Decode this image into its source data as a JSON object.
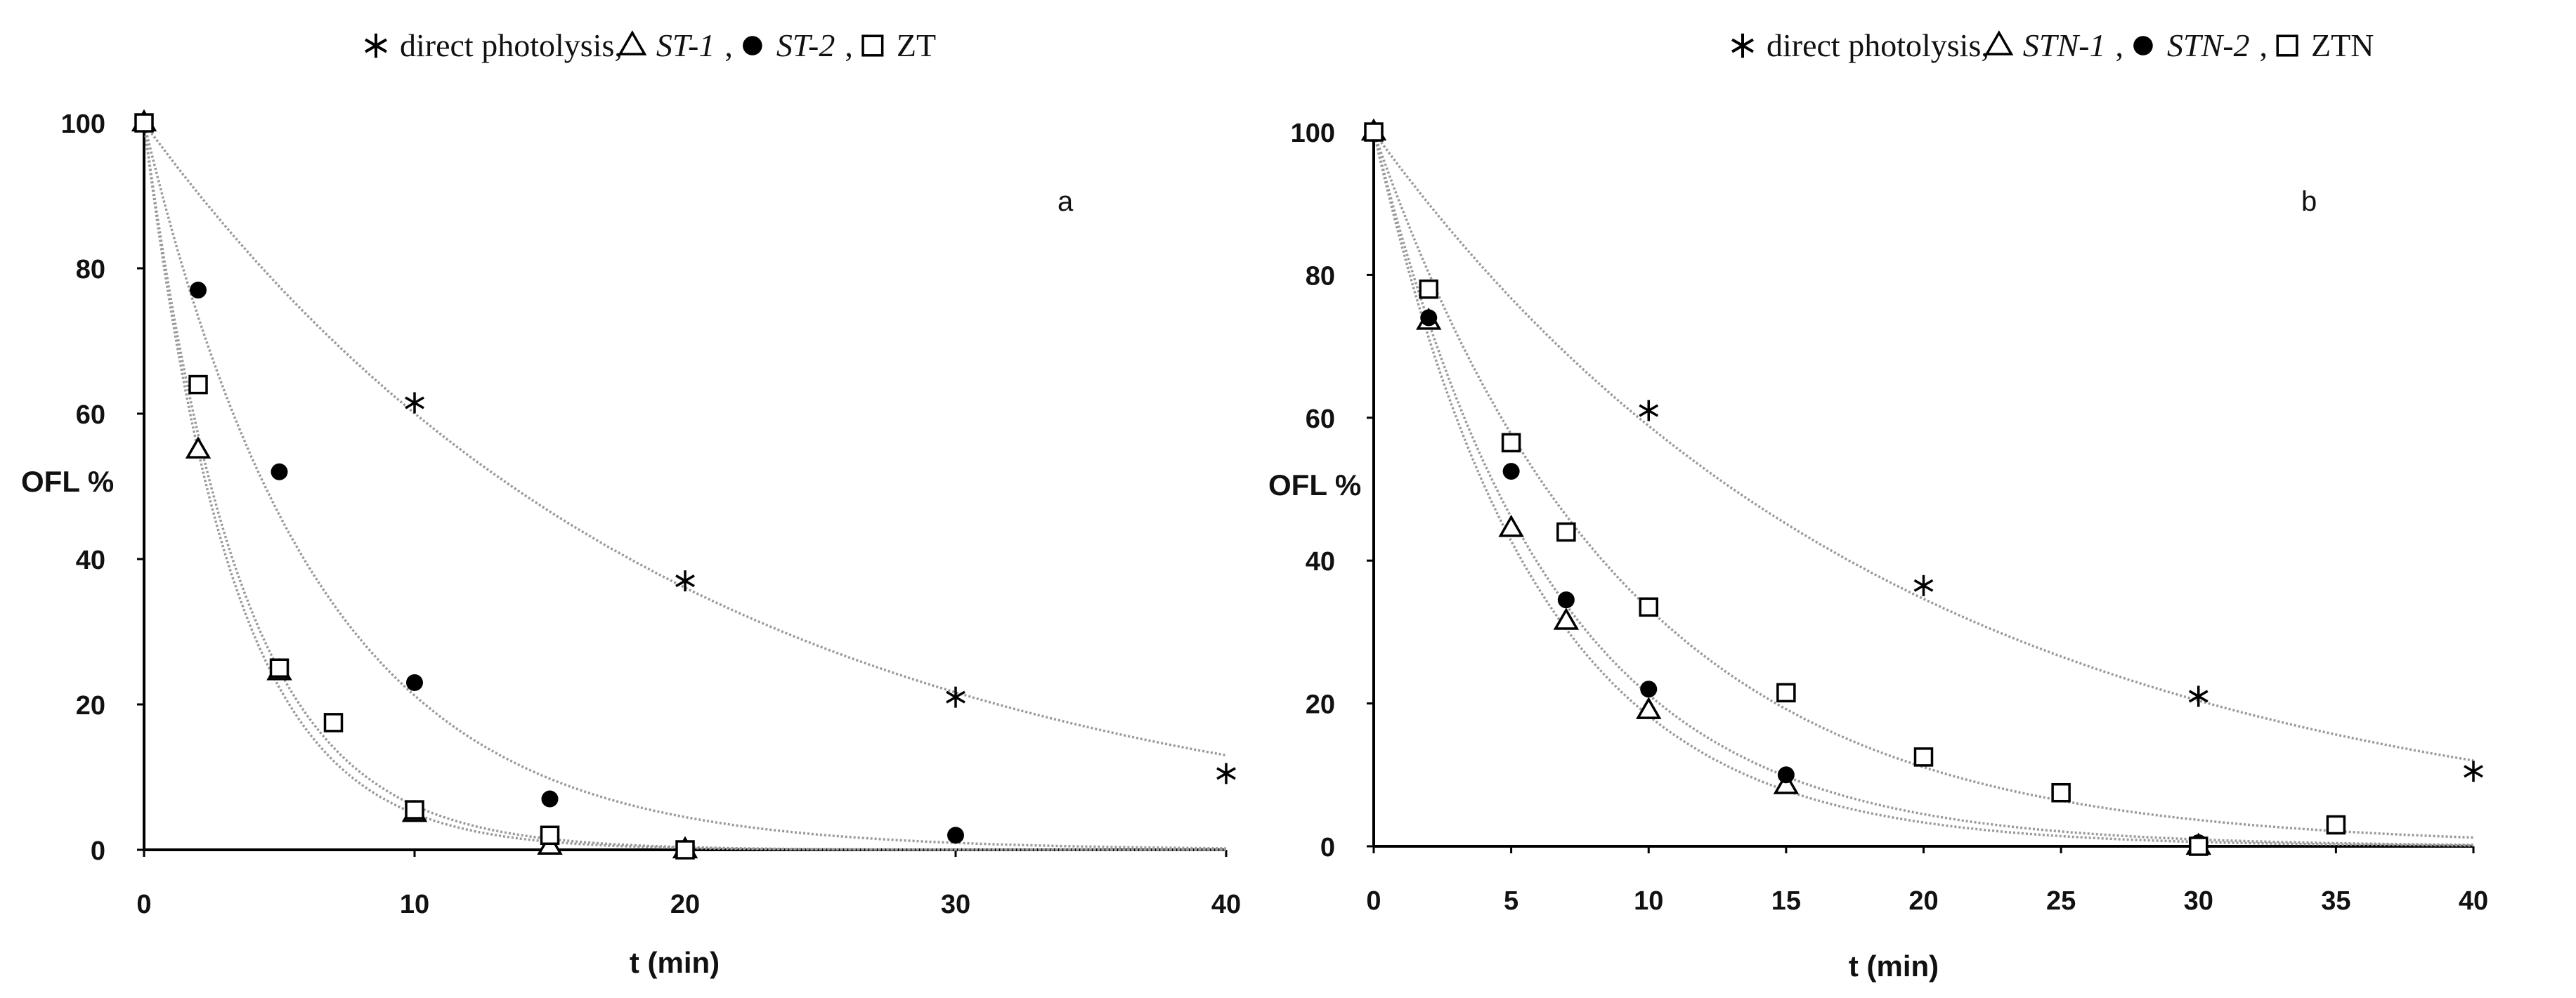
{
  "chart_data": [
    {
      "type": "scatter",
      "panel_label": "a",
      "xlabel": "t (min)",
      "ylabel": "OFL %",
      "xlim": [
        0,
        40
      ],
      "ylim": [
        0,
        100
      ],
      "xticks": [
        0,
        10,
        20,
        30,
        40
      ],
      "yticks": [
        0,
        20,
        40,
        60,
        80,
        100
      ],
      "xtick_labels": [
        "0",
        "10",
        "20",
        "30",
        "40"
      ],
      "ytick_labels": [
        "0",
        "20",
        "40",
        "60",
        "80",
        "100"
      ],
      "grid": false,
      "legend_position": "top",
      "legend": [
        {
          "text": "direct photolysis,",
          "italic": false,
          "marker": "asterisk"
        },
        {
          "text": "ST-1",
          "italic": true,
          "marker": "triangle"
        },
        {
          "text": ",",
          "italic": false,
          "marker": null
        },
        {
          "text": "ST-2",
          "italic": true,
          "marker": "circle"
        },
        {
          "text": ",",
          "italic": false,
          "marker": null
        },
        {
          "text": "ZT",
          "italic": false,
          "marker": "square"
        }
      ],
      "series": [
        {
          "name": "direct photolysis",
          "marker": "asterisk",
          "x": [
            0,
            10,
            20,
            30,
            40
          ],
          "y": [
            100,
            61.5,
            37,
            21,
            10.5
          ],
          "fit_k": 0.051
        },
        {
          "name": "ST-1",
          "marker": "triangle",
          "x": [
            0,
            2,
            5,
            10,
            15,
            20
          ],
          "y": [
            100,
            55,
            24.5,
            5,
            0.5,
            0
          ],
          "fit_k": 0.3
        },
        {
          "name": "ST-2",
          "marker": "circle",
          "x": [
            0,
            2,
            5,
            10,
            15,
            30
          ],
          "y": [
            100,
            77,
            52,
            23,
            7,
            2
          ],
          "fit_k": 0.155
        },
        {
          "name": "ZT",
          "marker": "square",
          "x": [
            0,
            2,
            5,
            7,
            10,
            15,
            20
          ],
          "y": [
            100,
            64,
            25,
            17.5,
            5.5,
            2,
            0
          ],
          "fit_k": 0.28
        }
      ]
    },
    {
      "type": "scatter",
      "panel_label": "b",
      "xlabel": "t (min)",
      "ylabel": "OFL %",
      "xlim": [
        0,
        40
      ],
      "ylim": [
        0,
        100
      ],
      "xticks": [
        0,
        5,
        10,
        15,
        20,
        25,
        30,
        35,
        40
      ],
      "yticks": [
        0,
        20,
        40,
        60,
        80,
        100
      ],
      "xtick_labels": [
        "0",
        "5",
        "10",
        "15",
        "20",
        "25",
        "30",
        "35",
        "40"
      ],
      "ytick_labels": [
        "0",
        "20",
        "40",
        "60",
        "80",
        "100"
      ],
      "grid": false,
      "legend_position": "top",
      "legend": [
        {
          "text": "direct photolysis,",
          "italic": false,
          "marker": "asterisk"
        },
        {
          "text": "STN-1",
          "italic": true,
          "marker": "triangle"
        },
        {
          "text": ",",
          "italic": false,
          "marker": null
        },
        {
          "text": "STN-2",
          "italic": true,
          "marker": "circle"
        },
        {
          "text": ",",
          "italic": false,
          "marker": null
        },
        {
          "text": "ZTN",
          "italic": false,
          "marker": "square"
        }
      ],
      "series": [
        {
          "name": "direct photolysis",
          "marker": "asterisk",
          "x": [
            0,
            10,
            20,
            30,
            40
          ],
          "y": [
            100,
            61,
            36.5,
            21,
            10.5
          ],
          "fit_k": 0.053
        },
        {
          "name": "STN-1",
          "marker": "triangle",
          "x": [
            0,
            2,
            5,
            7,
            10,
            15,
            30
          ],
          "y": [
            100,
            73.5,
            44.5,
            31.5,
            19,
            8.5,
            0
          ],
          "fit_k": 0.17
        },
        {
          "name": "STN-2",
          "marker": "circle",
          "x": [
            0,
            2,
            5,
            7,
            10,
            15,
            30
          ],
          "y": [
            100,
            74,
            52.5,
            34.5,
            22,
            10,
            0.5
          ],
          "fit_k": 0.155
        },
        {
          "name": "ZTN",
          "marker": "square",
          "x": [
            0,
            2,
            5,
            7,
            10,
            15,
            20,
            25,
            30,
            35
          ],
          "y": [
            100,
            78,
            56.5,
            44,
            33.5,
            21.5,
            12.5,
            7.5,
            0,
            3
          ],
          "fit_k": 0.11
        }
      ]
    }
  ]
}
